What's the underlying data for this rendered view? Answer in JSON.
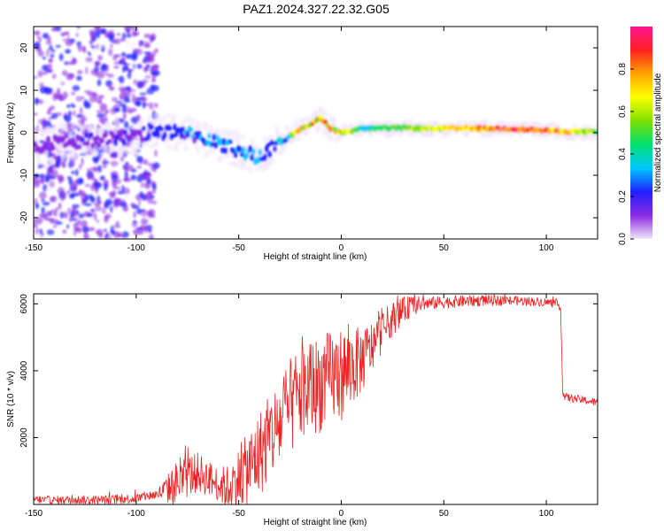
{
  "chart_data": [
    {
      "type": "heatmap",
      "title": "PAZ1.2024.327.22.32.G05",
      "xlabel": "Height of straight line (km)",
      "ylabel": "Frequency (Hz)",
      "xlim": [
        -150,
        125
      ],
      "ylim": [
        -25,
        25
      ],
      "xticks": [
        "-150",
        "-100",
        "-50",
        "0",
        "50",
        "100"
      ],
      "yticks": [
        "-20",
        "-10",
        "0",
        "10",
        "20"
      ],
      "colorbar": {
        "label": "Normalized spectral amplitude",
        "range": [
          0,
          1
        ],
        "ticks": [
          "0.0",
          "0.2",
          "0.4",
          "0.6",
          "0.8"
        ],
        "colors": [
          "#f2e6fa",
          "#8a2be2",
          "#2020ff",
          "#00c8ff",
          "#00e070",
          "#7be000",
          "#ffff00",
          "#ffa500",
          "#ff2020",
          "#ff1493"
        ]
      },
      "ridge": {
        "x": [
          -150,
          -120,
          -100,
          -90,
          -80,
          -70,
          -60,
          -50,
          -45,
          -40,
          -35,
          -30,
          -25,
          -20,
          -15,
          -10,
          -5,
          0,
          5,
          10,
          20,
          30,
          40,
          50,
          60,
          70,
          80,
          90,
          100,
          110,
          120,
          125
        ],
        "frequency": [
          -3,
          -1.5,
          -1,
          0.5,
          0,
          -1,
          -2.5,
          -4,
          -5,
          -5.5,
          -4,
          -2.5,
          -1,
          1,
          2,
          3.5,
          1,
          0,
          0.5,
          1,
          1,
          1.2,
          1,
          1,
          1,
          1,
          1,
          0.8,
          0.5,
          0.3,
          0.2,
          0
        ],
        "amplitude": [
          0.1,
          0.15,
          0.15,
          0.2,
          0.25,
          0.25,
          0.28,
          0.3,
          0.3,
          0.3,
          0.32,
          0.35,
          0.5,
          0.6,
          0.7,
          0.8,
          0.75,
          0.7,
          0.6,
          0.4,
          0.45,
          0.5,
          0.6,
          0.7,
          0.75,
          0.8,
          0.85,
          0.85,
          0.8,
          0.7,
          0.6,
          0.5
        ]
      }
    },
    {
      "type": "line",
      "xlabel": "Height of straight line (km)",
      "ylabel": "SNR (10 * v/v)",
      "xlim": [
        -150,
        125
      ],
      "ylim": [
        0,
        6300
      ],
      "xticks": [
        "-150",
        "-100",
        "-50",
        "0",
        "50",
        "100"
      ],
      "yticks": [
        "2000",
        "4000",
        "6000"
      ],
      "color": "#ee2222",
      "series": [
        {
          "x": [
            -150,
            -140,
            -130,
            -120,
            -110,
            -100,
            -95,
            -90,
            -85,
            -80,
            -75,
            -70,
            -65,
            -60,
            -55,
            -50,
            -45,
            -40,
            -35,
            -30,
            -25,
            -20,
            -15,
            -10,
            -5,
            0,
            5,
            10,
            15,
            20,
            25,
            30,
            35,
            40,
            50,
            60,
            70,
            80,
            90,
            100,
            105,
            107,
            108,
            110,
            115,
            120,
            125
          ],
          "values": [
            150,
            120,
            140,
            130,
            150,
            180,
            250,
            300,
            450,
            650,
            850,
            950,
            800,
            600,
            500,
            800,
            1100,
            1500,
            2000,
            2400,
            2900,
            3300,
            3500,
            3600,
            3800,
            3900,
            4100,
            4300,
            4700,
            5200,
            5550,
            5800,
            5950,
            6000,
            6050,
            6080,
            6100,
            6100,
            6080,
            6050,
            6000,
            5900,
            3300,
            3200,
            3150,
            3100,
            3050
          ]
        }
      ],
      "noise": [
        {
          "x": -150,
          "amplitude": 120
        },
        {
          "x": -90,
          "amplitude": 150
        },
        {
          "x": -80,
          "amplitude": 700
        },
        {
          "x": -60,
          "amplitude": 500
        },
        {
          "x": -40,
          "amplitude": 1300
        },
        {
          "x": -20,
          "amplitude": 1500
        },
        {
          "x": 0,
          "amplitude": 1400
        },
        {
          "x": 20,
          "amplitude": 600
        },
        {
          "x": 40,
          "amplitude": 200
        },
        {
          "x": 105,
          "amplitude": 120
        },
        {
          "x": 125,
          "amplitude": 120
        }
      ]
    }
  ]
}
